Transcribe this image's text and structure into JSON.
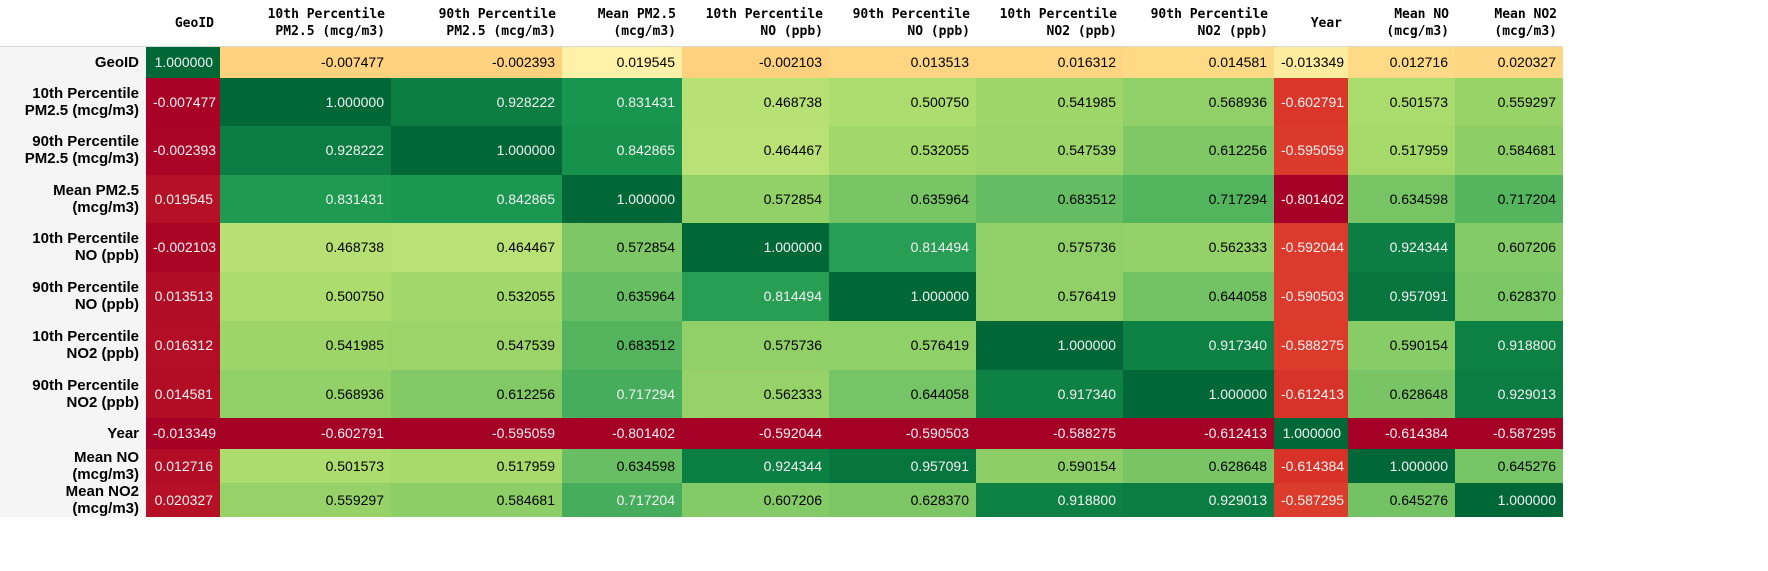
{
  "chart_data": {
    "type": "heatmap",
    "colormap": "RdYlGn",
    "value_range": [
      -1,
      1
    ],
    "columns": [
      "GeoID",
      "10th Percentile PM2.5 (mcg/m3)",
      "90th Percentile PM2.5 (mcg/m3)",
      "Mean PM2.5 (mcg/m3)",
      "10th Percentile NO (ppb)",
      "90th Percentile NO (ppb)",
      "10th Percentile NO2 (ppb)",
      "90th Percentile NO2 (ppb)",
      "Year",
      "Mean NO (mcg/m3)",
      "Mean NO2 (mcg/m3)"
    ],
    "rows": [
      "GeoID",
      "10th Percentile PM2.5 (mcg/m3)",
      "90th Percentile PM2.5 (mcg/m3)",
      "Mean PM2.5 (mcg/m3)",
      "10th Percentile NO (ppb)",
      "90th Percentile NO (ppb)",
      "10th Percentile NO2 (ppb)",
      "90th Percentile NO2 (ppb)",
      "Year",
      "Mean NO (mcg/m3)",
      "Mean NO2 (mcg/m3)"
    ],
    "values": [
      [
        "1.000000",
        "-0.007477",
        "-0.002393",
        "0.019545",
        "-0.002103",
        "0.013513",
        "0.016312",
        "0.014581",
        "-0.013349",
        "0.012716",
        "0.020327"
      ],
      [
        "-0.007477",
        "1.000000",
        "0.928222",
        "0.831431",
        "0.468738",
        "0.500750",
        "0.541985",
        "0.568936",
        "-0.602791",
        "0.501573",
        "0.559297"
      ],
      [
        "-0.002393",
        "0.928222",
        "1.000000",
        "0.842865",
        "0.464467",
        "0.532055",
        "0.547539",
        "0.612256",
        "-0.595059",
        "0.517959",
        "0.584681"
      ],
      [
        "0.019545",
        "0.831431",
        "0.842865",
        "1.000000",
        "0.572854",
        "0.635964",
        "0.683512",
        "0.717294",
        "-0.801402",
        "0.634598",
        "0.717204"
      ],
      [
        "-0.002103",
        "0.468738",
        "0.464467",
        "0.572854",
        "1.000000",
        "0.814494",
        "0.575736",
        "0.562333",
        "-0.592044",
        "0.924344",
        "0.607206"
      ],
      [
        "0.013513",
        "0.500750",
        "0.532055",
        "0.635964",
        "0.814494",
        "1.000000",
        "0.576419",
        "0.644058",
        "-0.590503",
        "0.957091",
        "0.628370"
      ],
      [
        "0.016312",
        "0.541985",
        "0.547539",
        "0.683512",
        "0.575736",
        "0.576419",
        "1.000000",
        "0.917340",
        "-0.588275",
        "0.590154",
        "0.918800"
      ],
      [
        "0.014581",
        "0.568936",
        "0.612256",
        "0.717294",
        "0.562333",
        "0.644058",
        "0.917340",
        "1.000000",
        "-0.612413",
        "0.628648",
        "0.929013"
      ],
      [
        "-0.013349",
        "-0.602791",
        "-0.595059",
        "-0.801402",
        "-0.592044",
        "-0.590503",
        "-0.588275",
        "-0.612413",
        "1.000000",
        "-0.614384",
        "-0.587295"
      ],
      [
        "0.012716",
        "0.501573",
        "0.517959",
        "0.634598",
        "0.924344",
        "0.957091",
        "0.590154",
        "0.628648",
        "-0.614384",
        "1.000000",
        "0.645276"
      ],
      [
        "0.020327",
        "0.559297",
        "0.584681",
        "0.717204",
        "0.607206",
        "0.628370",
        "0.918800",
        "0.929013",
        "-0.587295",
        "0.645276",
        "1.000000"
      ]
    ]
  }
}
